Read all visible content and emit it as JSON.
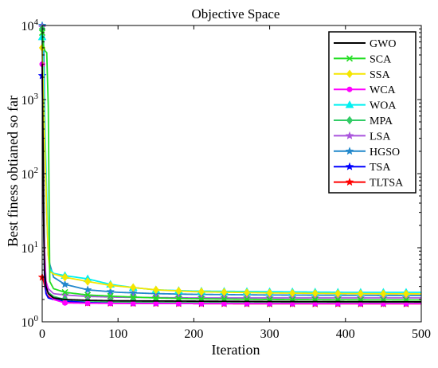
{
  "chart_data": {
    "type": "line",
    "title": "Objective Space",
    "xlabel": "Iteration",
    "ylabel": "Best finess obtianed so far",
    "xlim": [
      0,
      500
    ],
    "ylim": [
      1,
      10000
    ],
    "yscale": "log",
    "xticks": [
      0,
      100,
      200,
      300,
      400,
      500
    ],
    "xtick_labels": [
      "0",
      "100",
      "200",
      "300",
      "400",
      "500"
    ],
    "yticks": [
      1,
      10,
      100,
      1000,
      10000
    ],
    "ytick_labels": [
      {
        "base": "10",
        "exp": "0"
      },
      {
        "base": "10",
        "exp": "1"
      },
      {
        "base": "10",
        "exp": "2"
      },
      {
        "base": "10",
        "exp": "3"
      },
      {
        "base": "10",
        "exp": "4"
      }
    ],
    "legend_position": "top-right",
    "grid": false,
    "series": [
      {
        "name": "GWO",
        "color": "#000000",
        "marker": "none",
        "x": [
          0,
          1,
          2,
          3,
          5,
          8,
          15,
          30,
          60,
          100,
          200,
          300,
          400,
          500
        ],
        "y": [
          3000,
          300,
          20,
          5,
          3,
          2.4,
          2.1,
          2.0,
          1.95,
          1.92,
          1.9,
          1.88,
          1.87,
          1.86
        ]
      },
      {
        "name": "SCA",
        "color": "#22dd22",
        "marker": "x",
        "x": [
          0,
          2,
          4,
          6,
          8,
          10,
          15,
          30,
          60,
          100,
          150,
          200,
          300,
          400,
          500
        ],
        "y": [
          8000,
          5000,
          4500,
          4300,
          800,
          3.5,
          2.8,
          2.5,
          2.3,
          2.2,
          2.1,
          2.05,
          2.0,
          1.98,
          1.97
        ]
      },
      {
        "name": "SSA",
        "color": "#f5e600",
        "marker": "diamond",
        "x": [
          0,
          2,
          4,
          6,
          8,
          10,
          15,
          30,
          60,
          90,
          120,
          150,
          200,
          300,
          400,
          500
        ],
        "y": [
          5000,
          800,
          150,
          30,
          8,
          4.8,
          4.4,
          4.0,
          3.5,
          3.1,
          2.9,
          2.7,
          2.55,
          2.45,
          2.4,
          2.38
        ]
      },
      {
        "name": "WCA",
        "color": "#ff00ff",
        "marker": "circle",
        "x": [
          0,
          1,
          2,
          4,
          8,
          15,
          30,
          60,
          100,
          200,
          300,
          400,
          500
        ],
        "y": [
          3000,
          300,
          20,
          4,
          2.4,
          2.0,
          1.8,
          1.78,
          1.77,
          1.76,
          1.76,
          1.76,
          1.76
        ]
      },
      {
        "name": "WOA",
        "color": "#00f0f0",
        "marker": "triangle",
        "x": [
          0,
          2,
          4,
          6,
          8,
          10,
          15,
          30,
          60,
          90,
          120,
          150,
          200,
          300,
          400,
          500
        ],
        "y": [
          7000,
          2000,
          300,
          50,
          10,
          5.2,
          4.5,
          4.2,
          3.8,
          3.2,
          2.9,
          2.7,
          2.6,
          2.55,
          2.5,
          2.5
        ]
      },
      {
        "name": "MPA",
        "color": "#33cc66",
        "marker": "diamond",
        "x": [
          0,
          1,
          2,
          3,
          5,
          8,
          15,
          30,
          60,
          100,
          200,
          300,
          400,
          500
        ],
        "y": [
          9000,
          1000,
          50,
          5,
          3,
          2.5,
          2.2,
          2.0,
          1.9,
          1.85,
          1.82,
          1.8,
          1.8,
          1.8
        ]
      },
      {
        "name": "LSA",
        "color": "#aa55dd",
        "marker": "star",
        "x": [
          0,
          1,
          2,
          3,
          5,
          8,
          15,
          30,
          60,
          100,
          200,
          300,
          400,
          500
        ],
        "y": [
          9500,
          2000,
          100,
          10,
          3.5,
          2.8,
          2.4,
          2.3,
          2.2,
          2.15,
          2.1,
          2.1,
          2.1,
          2.1
        ]
      },
      {
        "name": "HGSO",
        "color": "#2288cc",
        "marker": "star",
        "x": [
          0,
          1,
          2,
          3,
          4,
          6,
          8,
          10,
          15,
          30,
          60,
          100,
          150,
          200,
          300,
          400,
          500
        ],
        "y": [
          10000,
          9800,
          5000,
          1000,
          200,
          30,
          8,
          6,
          4,
          3.2,
          2.7,
          2.5,
          2.4,
          2.35,
          2.3,
          2.28,
          2.27
        ]
      },
      {
        "name": "TSA",
        "color": "#0000ff",
        "marker": "star",
        "x": [
          0,
          1,
          2,
          3,
          5,
          8,
          15,
          30,
          60,
          100,
          200,
          300,
          400,
          500
        ],
        "y": [
          2100,
          300,
          20,
          4,
          2.4,
          2.1,
          2.0,
          1.9,
          1.85,
          1.82,
          1.8,
          1.8,
          1.8,
          1.8
        ]
      },
      {
        "name": "TLTSA",
        "color": "#ff0000",
        "marker": "star",
        "x": [
          0,
          2,
          4,
          6,
          10,
          15,
          30,
          60,
          100,
          200,
          300,
          400,
          500
        ],
        "y": [
          4,
          3.5,
          2.8,
          2.3,
          2.1,
          2.0,
          1.9,
          1.8,
          1.78,
          1.76,
          1.75,
          1.75,
          1.75
        ]
      }
    ]
  }
}
